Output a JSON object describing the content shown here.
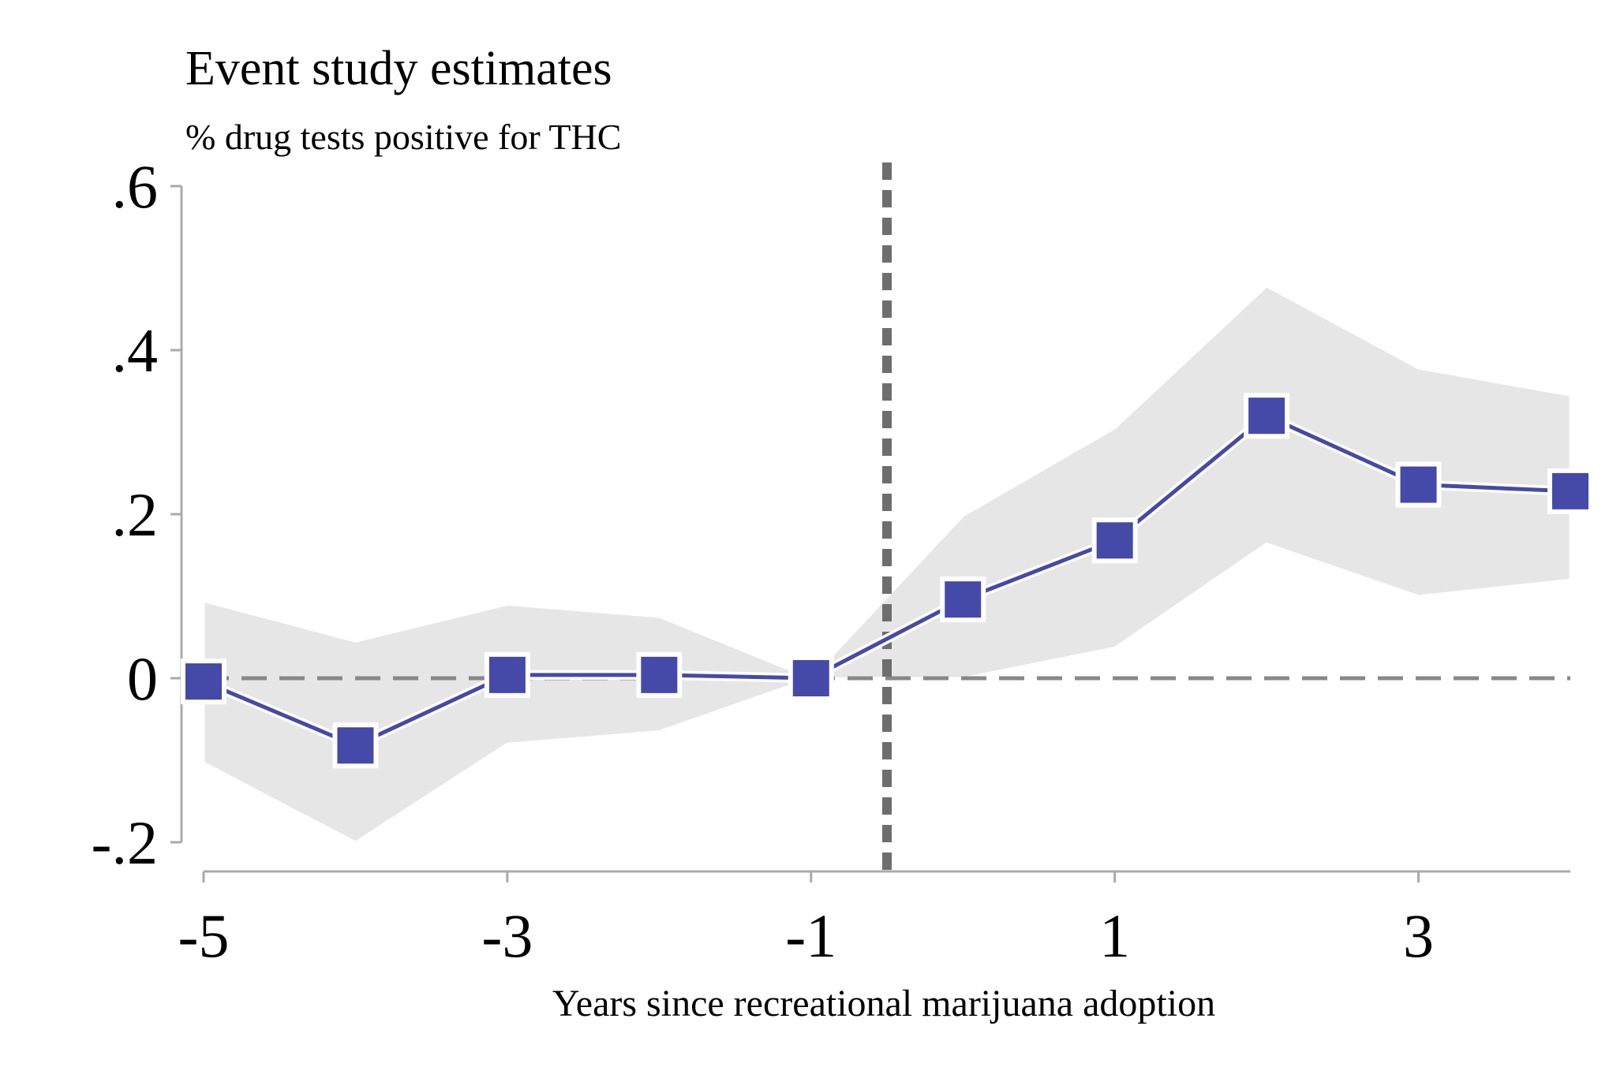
{
  "chart_data": {
    "type": "line",
    "title": "Event study estimates",
    "subtitle": "% drug tests positive for THC",
    "xlabel": "Years since recreational marijuana adoption",
    "ylabel": "",
    "x_ticks": [
      -5,
      -3,
      -1,
      1,
      3
    ],
    "x_tick_labels": [
      "-5",
      "-3",
      "-1",
      "1",
      "3"
    ],
    "y_ticks": [
      -0.2,
      0,
      0.2,
      0.4,
      0.6
    ],
    "y_tick_labels": [
      "-.2",
      "0",
      ".2",
      ".4",
      ".6"
    ],
    "xlim": [
      -5,
      4
    ],
    "ylim": [
      -0.2,
      0.6
    ],
    "grid": false,
    "legend": "none",
    "reference_lines": {
      "horizontal_y": 0,
      "vertical_x": -0.5
    },
    "series": [
      {
        "x": [
          -5,
          -4,
          -3,
          -2,
          -1,
          0,
          1,
          2,
          3,
          4
        ],
        "values": [
          -0.004,
          -0.082,
          0.004,
          0.004,
          0.0,
          0.096,
          0.168,
          0.32,
          0.236,
          0.228
        ],
        "ci_lower": [
          -0.103,
          -0.2,
          -0.08,
          -0.065,
          0.0,
          0.0,
          0.037,
          0.164,
          0.1,
          0.12
        ],
        "ci_upper": [
          0.094,
          0.045,
          0.09,
          0.075,
          0.0,
          0.198,
          0.305,
          0.478,
          0.378,
          0.345
        ]
      }
    ],
    "colors": {
      "series": "#454aa8",
      "ci_band": "#e6e6e6",
      "reference_line": "#888888",
      "event_line": "#6e6e6e",
      "axis": "#aaaaaa"
    }
  }
}
